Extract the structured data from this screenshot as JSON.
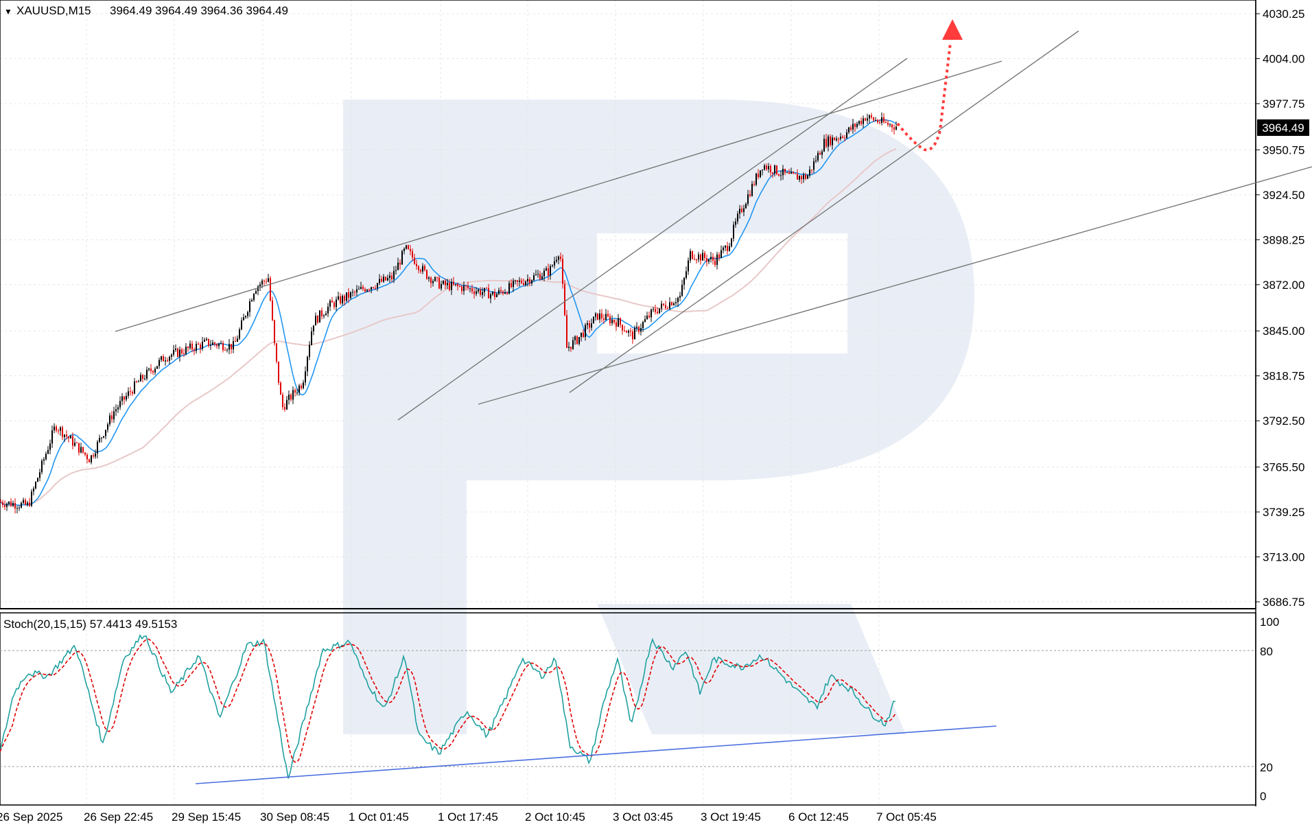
{
  "header": {
    "symbol": "XAUUSD,M15",
    "ohlc": "3964.49 3964.49 3964.36 3964.49"
  },
  "price_axis": {
    "ticks": [
      "4030.25",
      "4004.00",
      "3977.75",
      "3950.75",
      "3924.50",
      "3898.25",
      "3872.00",
      "3845.00",
      "3818.75",
      "3792.50",
      "3765.50",
      "3739.25",
      "3713.00",
      "3686.75"
    ],
    "current_price": "3964.49"
  },
  "time_axis": {
    "ticks": [
      "26 Sep 2025",
      "26 Sep 22:45",
      "29 Sep 15:45",
      "30 Sep 08:45",
      "1 Oct 01:45",
      "1 Oct 17:45",
      "2 Oct 10:45",
      "3 Oct 03:45",
      "3 Oct 19:45",
      "6 Oct 12:45",
      "7 Oct 05:45"
    ]
  },
  "stoch": {
    "label": "Stoch(20,15,15) 57.4413 49.5153",
    "levels": [
      "100",
      "80",
      "20",
      "0"
    ]
  },
  "colors": {
    "bull": "#000000",
    "bear": "#e00000",
    "ma_fast": "#2196f3",
    "ma_slow": "#e8c8c8",
    "stoch_main": "#20a0a0",
    "stoch_signal": "#e00000",
    "trendline": "#777777",
    "stoch_trend": "#4a6ee0",
    "forecast": "#ff3b3b",
    "watermark": "#e9eef6"
  },
  "chart_data": {
    "type": "candlestick",
    "symbol": "XAUUSD",
    "timeframe": "M15",
    "ylim": [
      3686.75,
      4030.25
    ],
    "last_price": 3964.49,
    "price_path": [
      {
        "t": "26 Sep 2025",
        "p": 3745
      },
      {
        "t": "26 Sep 22:45",
        "p": 3786
      },
      {
        "t": "29 Sep 15:45",
        "p": 3832
      },
      {
        "t": "30 Sep 08:45",
        "p": 3830
      },
      {
        "t": "1 Oct 01:45",
        "p": 3877
      },
      {
        "t": "1 Oct 17:45",
        "p": 3875
      },
      {
        "t": "2 Oct 10:45",
        "p": 3875
      },
      {
        "t": "3 Oct 03:45",
        "p": 3846
      },
      {
        "t": "3 Oct 19:45",
        "p": 3908
      },
      {
        "t": "6 Oct 12:45",
        "p": 3955
      },
      {
        "t": "7 Oct 05:45",
        "p": 3965
      }
    ],
    "stochastic": {
      "k_period": 20,
      "d_period": 15,
      "slowing": 15,
      "main": 57.4413,
      "signal": 49.5153,
      "levels": [
        80,
        20
      ]
    }
  }
}
